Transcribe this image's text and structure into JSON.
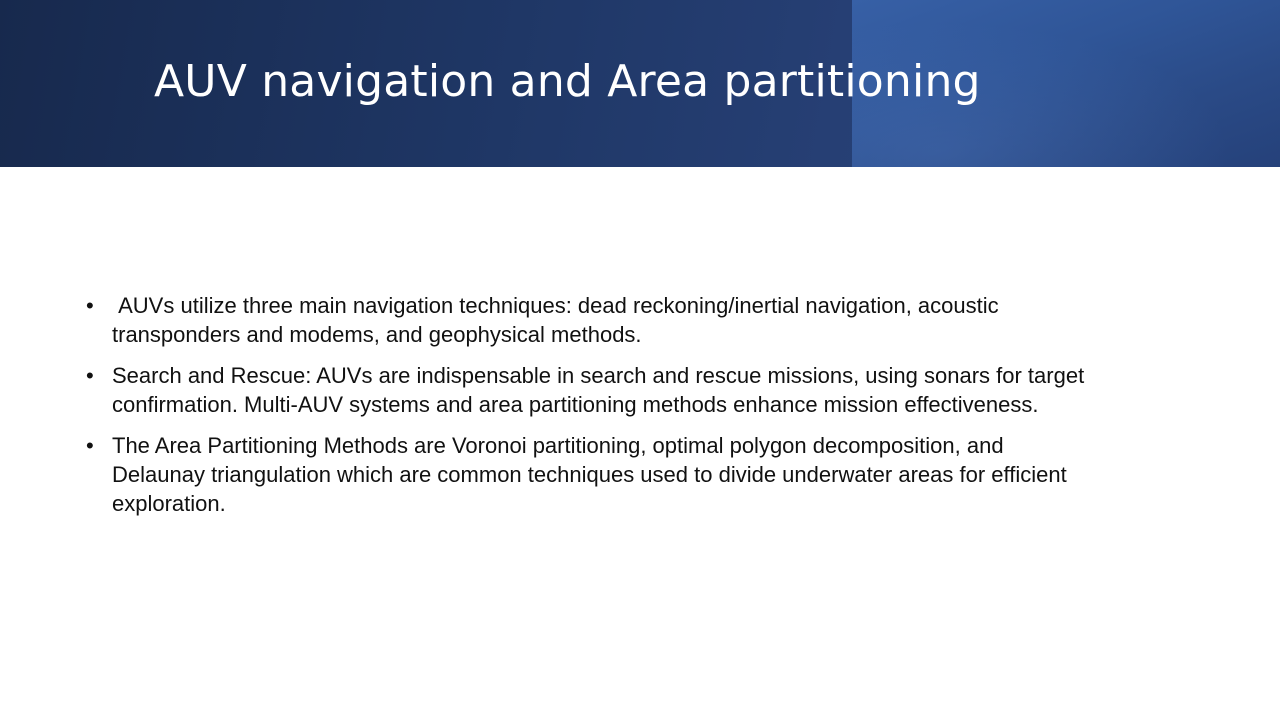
{
  "slide": {
    "title": "AUV navigation and Area partitioning",
    "bullet_marker": "•",
    "bullets": [
      " AUVs utilize three main navigation techniques: dead reckoning/inertial navigation, acoustic transponders and modems, and geophysical methods.",
      "Search and Rescue: AUVs are indispensable in search and rescue missions, using sonars for target confirmation. Multi-AUV systems and area partitioning methods enhance mission effectiveness.",
      "The Area Partitioning Methods are Voronoi partitioning, optimal polygon decomposition, and Delaunay triangulation which are common techniques used to divide underwater areas for efficient exploration."
    ]
  },
  "colors": {
    "title_band": "#1f3766",
    "title_text": "#ffffff",
    "body_text": "#111111",
    "background": "#ffffff"
  }
}
